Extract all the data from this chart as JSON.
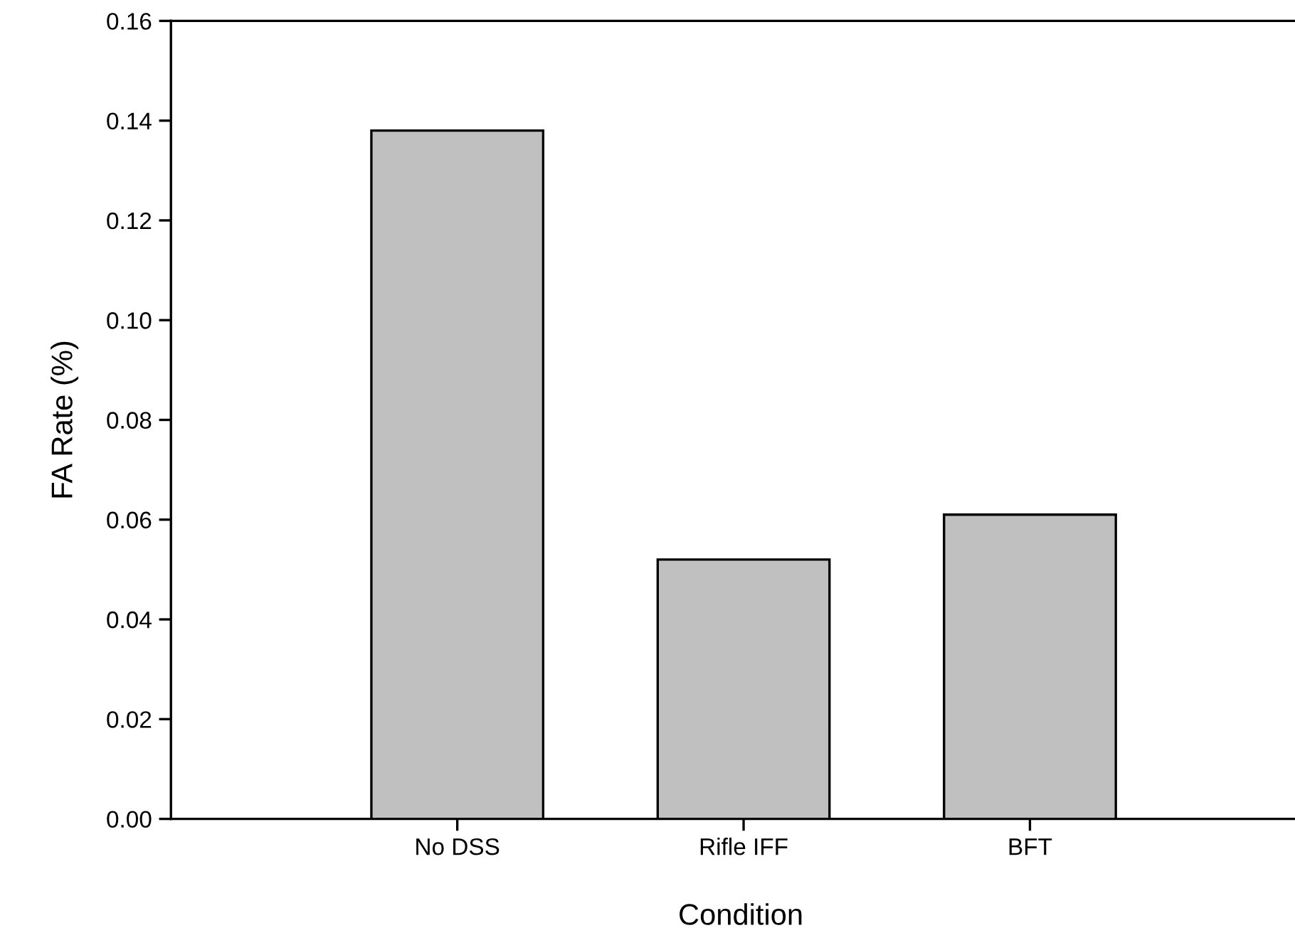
{
  "chart_data": {
    "type": "bar",
    "xlabel": "Condition",
    "ylabel": "FA Rate (%)",
    "categories": [
      "No DSS",
      "Rifle IFF",
      "BFT"
    ],
    "values": [
      0.138,
      0.052,
      0.061
    ],
    "color": "#c0c0c0",
    "ylim": [
      0,
      0.16
    ],
    "yticks": [
      {
        "value": 0,
        "label": "0.00"
      },
      {
        "value": 0.02,
        "label": "0.02"
      },
      {
        "value": 0.04,
        "label": "0.04"
      },
      {
        "value": 0.06,
        "label": "0.06"
      },
      {
        "value": 0.08,
        "label": "0.08"
      },
      {
        "value": 0.1,
        "label": "0.10"
      },
      {
        "value": 0.12,
        "label": "0.12"
      },
      {
        "value": 0.14,
        "label": "0.14"
      },
      {
        "value": 0.16,
        "label": "0.16"
      }
    ],
    "grid": false
  }
}
